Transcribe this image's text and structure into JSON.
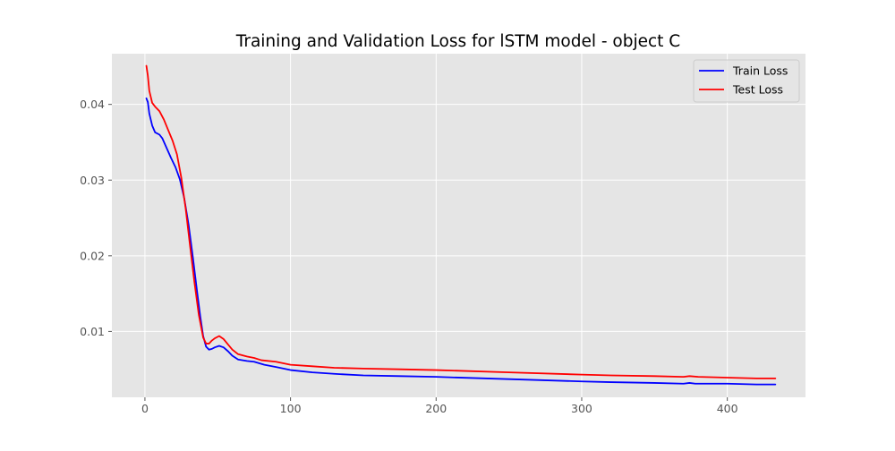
{
  "chart_data": {
    "type": "line",
    "title": "Training and Validation Loss for lSTM model - object C",
    "xlabel": "",
    "ylabel": "",
    "xlim": [
      -22.7,
      453.7
    ],
    "ylim": [
      0.0013,
      0.0467
    ],
    "xticks": [
      0,
      100,
      200,
      300,
      400
    ],
    "yticks": [
      0.01,
      0.02,
      0.03,
      0.04
    ],
    "xtick_labels": [
      "0",
      "100",
      "200",
      "300",
      "400"
    ],
    "ytick_labels": [
      "0.01",
      "0.02",
      "0.03",
      "0.04"
    ],
    "grid": true,
    "legend_position": "top-right",
    "background": "#e5e5e5",
    "series": [
      {
        "name": "Train Loss",
        "color": "#0000ff",
        "points": [
          [
            1,
            0.0408
          ],
          [
            2,
            0.0403
          ],
          [
            3,
            0.0388
          ],
          [
            5,
            0.0372
          ],
          [
            7,
            0.0363
          ],
          [
            10,
            0.036
          ],
          [
            12,
            0.0355
          ],
          [
            15,
            0.0342
          ],
          [
            18,
            0.0329
          ],
          [
            21,
            0.0317
          ],
          [
            24,
            0.0301
          ],
          [
            27,
            0.0276
          ],
          [
            30,
            0.0241
          ],
          [
            33,
            0.0197
          ],
          [
            36,
            0.015
          ],
          [
            38,
            0.012
          ],
          [
            40,
            0.0094
          ],
          [
            42,
            0.008
          ],
          [
            44,
            0.0076
          ],
          [
            46,
            0.0077
          ],
          [
            48,
            0.0079
          ],
          [
            51,
            0.0081
          ],
          [
            54,
            0.0079
          ],
          [
            57,
            0.0074
          ],
          [
            60,
            0.0068
          ],
          [
            64,
            0.0063
          ],
          [
            70,
            0.0061
          ],
          [
            75,
            0.006
          ],
          [
            82,
            0.0056
          ],
          [
            90,
            0.0053
          ],
          [
            100,
            0.0049
          ],
          [
            115,
            0.0046
          ],
          [
            130,
            0.0044
          ],
          [
            150,
            0.0042
          ],
          [
            175,
            0.0041
          ],
          [
            200,
            0.004
          ],
          [
            250,
            0.0037
          ],
          [
            300,
            0.0034
          ],
          [
            320,
            0.0033
          ],
          [
            350,
            0.0032
          ],
          [
            370,
            0.0031
          ],
          [
            374,
            0.0032
          ],
          [
            378,
            0.0031
          ],
          [
            385,
            0.0031
          ],
          [
            400,
            0.0031
          ],
          [
            420,
            0.003
          ],
          [
            433,
            0.003
          ]
        ]
      },
      {
        "name": "Test Loss",
        "color": "#ff0000",
        "points": [
          [
            1,
            0.0451
          ],
          [
            2,
            0.0438
          ],
          [
            3,
            0.0418
          ],
          [
            5,
            0.0402
          ],
          [
            7,
            0.0397
          ],
          [
            10,
            0.0391
          ],
          [
            13,
            0.038
          ],
          [
            16,
            0.0366
          ],
          [
            19,
            0.0352
          ],
          [
            22,
            0.0334
          ],
          [
            25,
            0.0303
          ],
          [
            28,
            0.0262
          ],
          [
            31,
            0.0213
          ],
          [
            34,
            0.0165
          ],
          [
            37,
            0.0122
          ],
          [
            40,
            0.0092
          ],
          [
            42,
            0.0084
          ],
          [
            44,
            0.0084
          ],
          [
            46,
            0.0088
          ],
          [
            48,
            0.0091
          ],
          [
            51,
            0.0094
          ],
          [
            54,
            0.009
          ],
          [
            57,
            0.0083
          ],
          [
            60,
            0.0076
          ],
          [
            64,
            0.007
          ],
          [
            70,
            0.0067
          ],
          [
            75,
            0.0065
          ],
          [
            80,
            0.0062
          ],
          [
            90,
            0.006
          ],
          [
            100,
            0.0056
          ],
          [
            115,
            0.0054
          ],
          [
            130,
            0.0052
          ],
          [
            150,
            0.0051
          ],
          [
            175,
            0.005
          ],
          [
            200,
            0.0049
          ],
          [
            250,
            0.0046
          ],
          [
            300,
            0.0043
          ],
          [
            320,
            0.0042
          ],
          [
            350,
            0.0041
          ],
          [
            370,
            0.004
          ],
          [
            374,
            0.0041
          ],
          [
            380,
            0.004
          ],
          [
            400,
            0.0039
          ],
          [
            420,
            0.0038
          ],
          [
            433,
            0.0038
          ]
        ]
      }
    ]
  }
}
